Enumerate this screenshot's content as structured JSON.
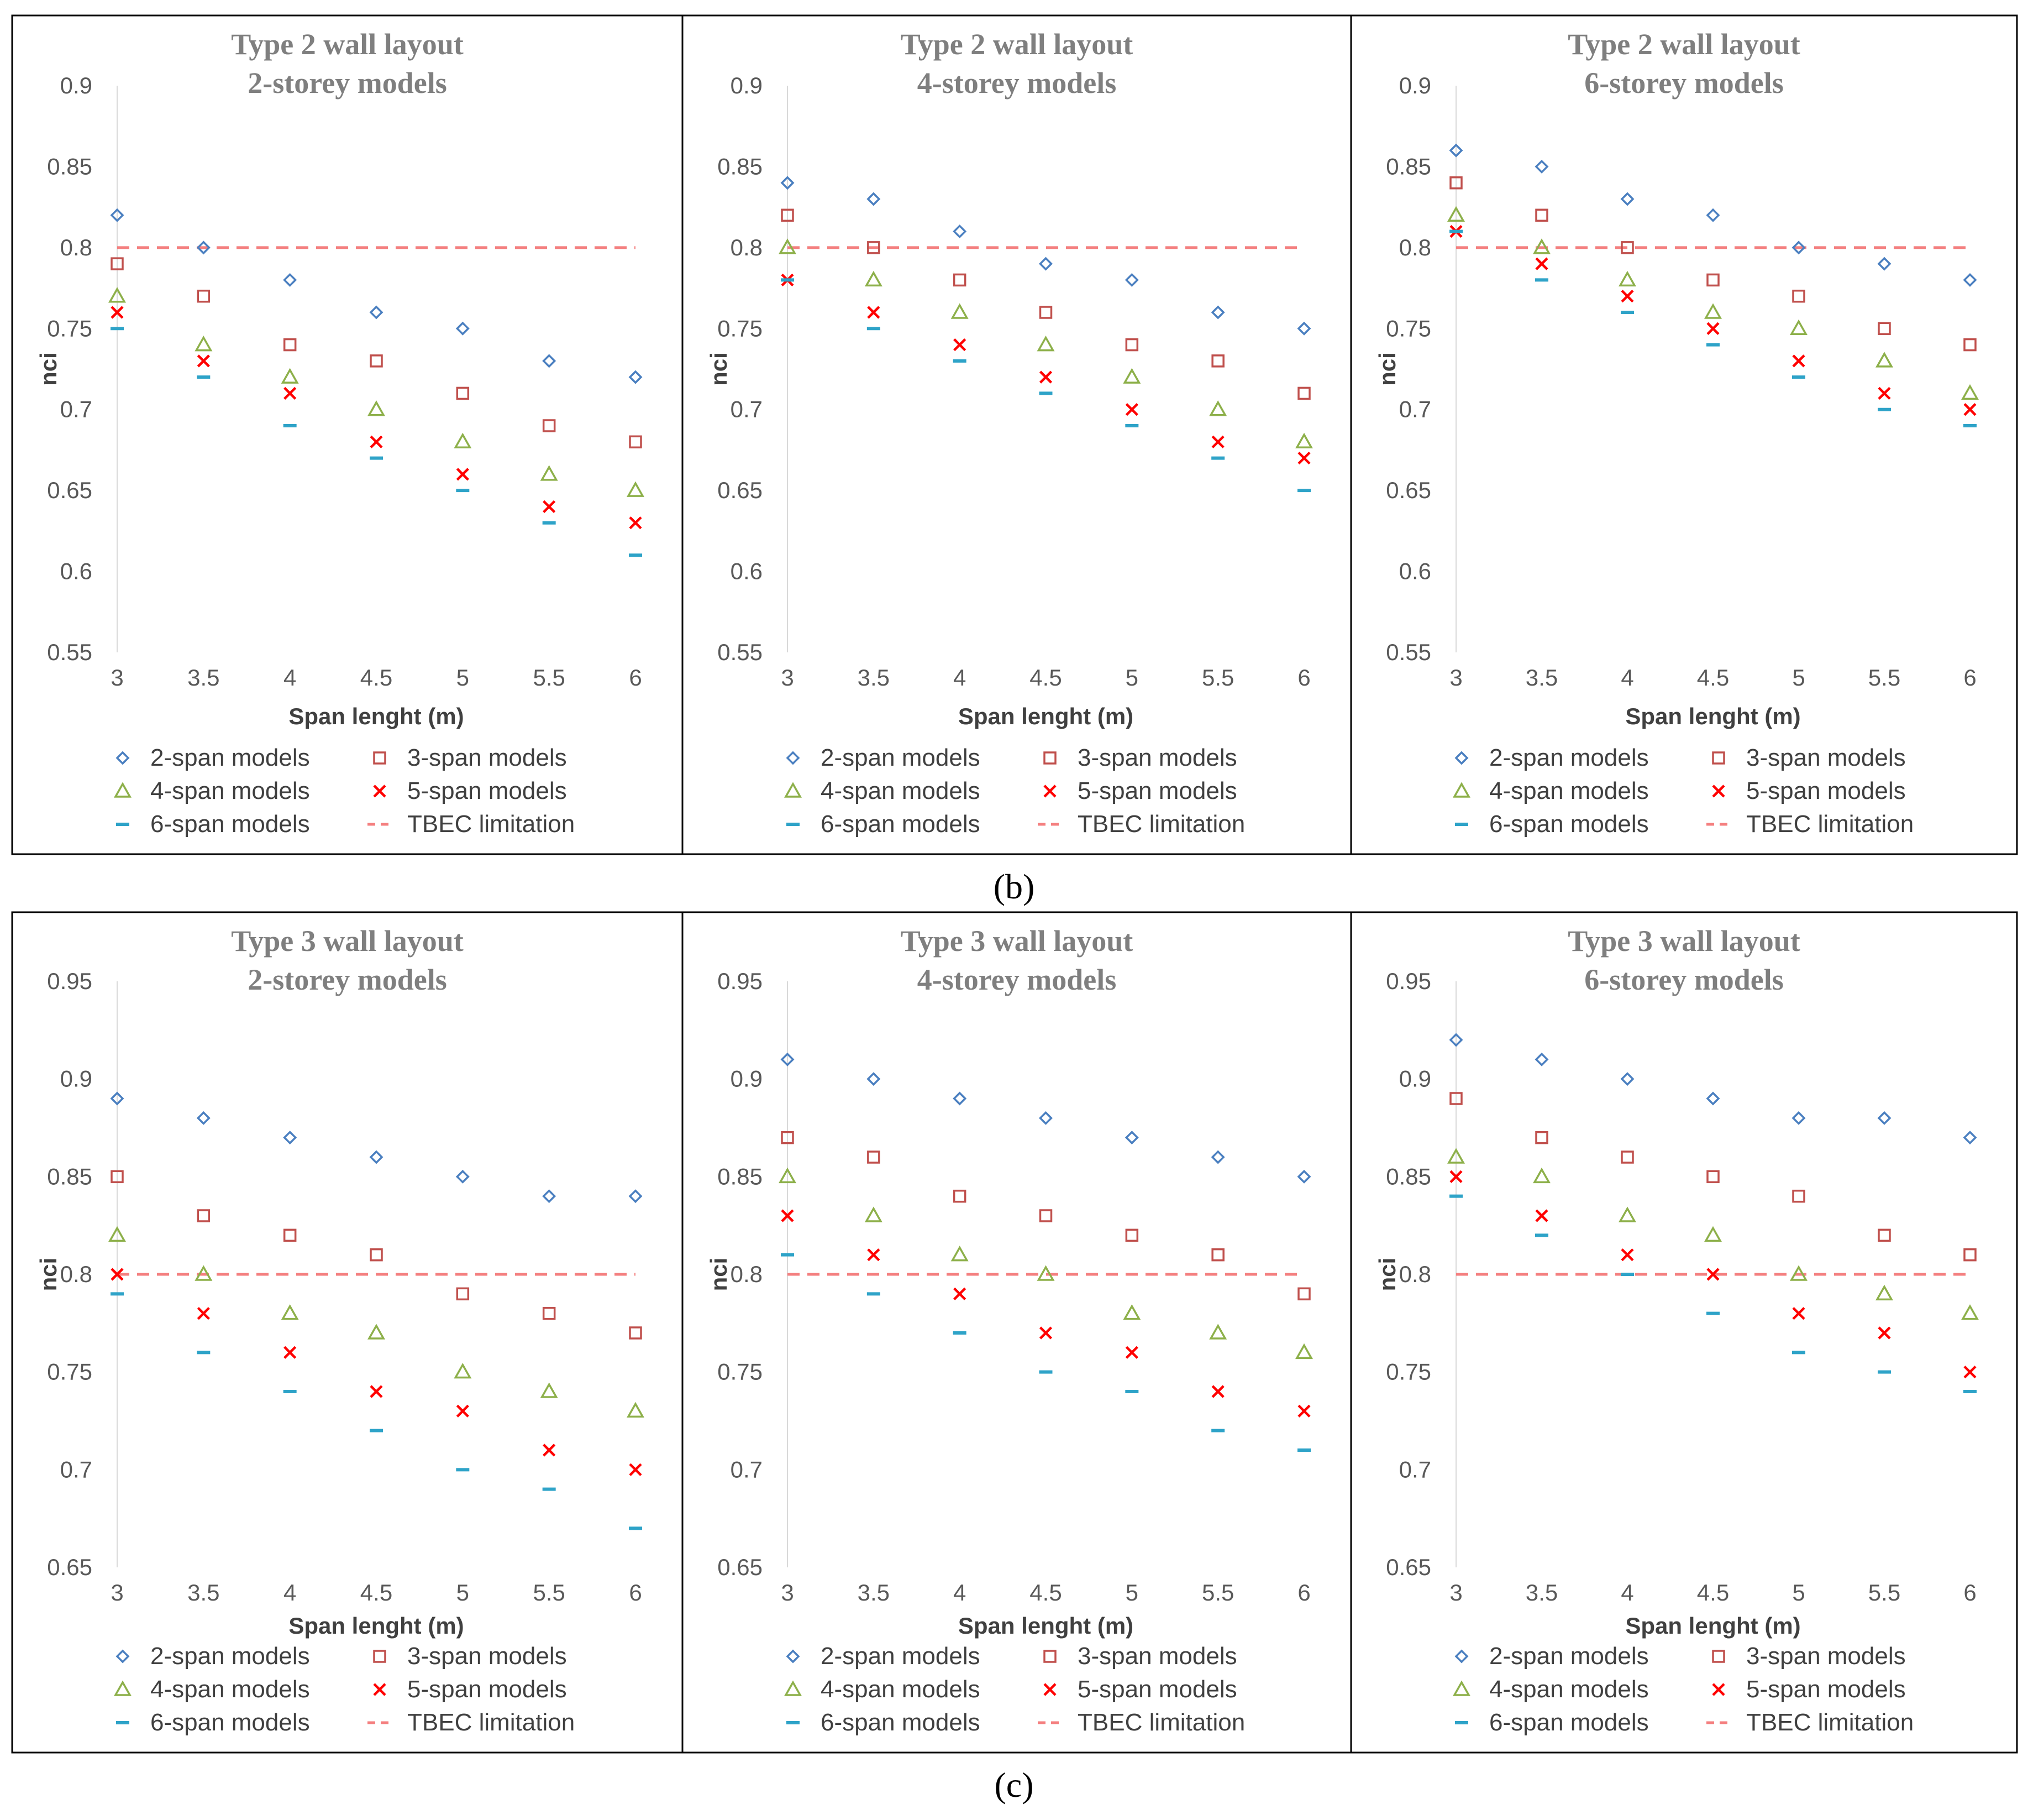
{
  "colors": {
    "2-span": "#4a7fc0",
    "3-span": "#c0504d",
    "4-span": "#8db04a",
    "5-span": "#ff0000",
    "6-span": "#2ea3c8",
    "limit": "#f47f7f"
  },
  "captions": [
    "(b)",
    "(c)"
  ],
  "chart_data": [
    {
      "type": "scatter",
      "title": [
        "Type 2 wall layout",
        "2-storey models"
      ],
      "xlabel": "Span lenght (m)",
      "ylabel": "nci",
      "x": [
        3,
        3.5,
        4,
        4.5,
        5,
        5.5,
        6
      ],
      "xticks": [
        "3",
        "3.5",
        "4",
        "4.5",
        "5",
        "5.5",
        "6"
      ],
      "ylim": [
        0.55,
        0.9
      ],
      "yticks": [
        "0.55",
        "0.6",
        "0.65",
        "0.7",
        "0.75",
        "0.8",
        "0.85",
        "0.9"
      ],
      "series": [
        {
          "name": "2-span models",
          "values": [
            0.82,
            0.8,
            0.78,
            0.76,
            0.75,
            0.73,
            0.72
          ]
        },
        {
          "name": "3-span models",
          "values": [
            0.79,
            0.77,
            0.74,
            0.73,
            0.71,
            0.69,
            0.68
          ]
        },
        {
          "name": "4-span models",
          "values": [
            0.77,
            0.74,
            0.72,
            0.7,
            0.68,
            0.66,
            0.65
          ]
        },
        {
          "name": "5-span models",
          "values": [
            0.76,
            0.73,
            0.71,
            0.68,
            0.66,
            0.64,
            0.63
          ]
        },
        {
          "name": "6-span models",
          "values": [
            0.75,
            0.72,
            0.69,
            0.67,
            0.65,
            0.63,
            0.61
          ]
        }
      ],
      "limit": {
        "name": "TBEC limitation",
        "value": 0.8
      }
    },
    {
      "type": "scatter",
      "title": [
        "Type 2 wall layout",
        "4-storey models"
      ],
      "xlabel": "Span lenght (m)",
      "ylabel": "nci",
      "x": [
        3,
        3.5,
        4,
        4.5,
        5,
        5.5,
        6
      ],
      "xticks": [
        "3",
        "3.5",
        "4",
        "4.5",
        "5",
        "5.5",
        "6"
      ],
      "ylim": [
        0.55,
        0.9
      ],
      "yticks": [
        "0.55",
        "0.6",
        "0.65",
        "0.7",
        "0.75",
        "0.8",
        "0.85",
        "0.9"
      ],
      "series": [
        {
          "name": "2-span models",
          "values": [
            0.84,
            0.83,
            0.81,
            0.79,
            0.78,
            0.76,
            0.75
          ]
        },
        {
          "name": "3-span models",
          "values": [
            0.82,
            0.8,
            0.78,
            0.76,
            0.74,
            0.73,
            0.71
          ]
        },
        {
          "name": "4-span models",
          "values": [
            0.8,
            0.78,
            0.76,
            0.74,
            0.72,
            0.7,
            0.68
          ]
        },
        {
          "name": "5-span models",
          "values": [
            0.78,
            0.76,
            0.74,
            0.72,
            0.7,
            0.68,
            0.67
          ]
        },
        {
          "name": "6-span models",
          "values": [
            0.78,
            0.75,
            0.73,
            0.71,
            0.69,
            0.67,
            0.65
          ]
        }
      ],
      "limit": {
        "name": "TBEC limitation",
        "value": 0.8
      }
    },
    {
      "type": "scatter",
      "title": [
        "Type 2 wall layout",
        "6-storey models"
      ],
      "xlabel": "Span lenght (m)",
      "ylabel": "nci",
      "x": [
        3,
        3.5,
        4,
        4.5,
        5,
        5.5,
        6
      ],
      "xticks": [
        "3",
        "3.5",
        "4",
        "4.5",
        "5",
        "5.5",
        "6"
      ],
      "ylim": [
        0.55,
        0.9
      ],
      "yticks": [
        "0.55",
        "0.6",
        "0.65",
        "0.7",
        "0.75",
        "0.8",
        "0.85",
        "0.9"
      ],
      "series": [
        {
          "name": "2-span models",
          "values": [
            0.86,
            0.85,
            0.83,
            0.82,
            0.8,
            0.79,
            0.78
          ]
        },
        {
          "name": "3-span models",
          "values": [
            0.84,
            0.82,
            0.8,
            0.78,
            0.77,
            0.75,
            0.74
          ]
        },
        {
          "name": "4-span models",
          "values": [
            0.82,
            0.8,
            0.78,
            0.76,
            0.75,
            0.73,
            0.71
          ]
        },
        {
          "name": "5-span models",
          "values": [
            0.81,
            0.79,
            0.77,
            0.75,
            0.73,
            0.71,
            0.7
          ]
        },
        {
          "name": "6-span models",
          "values": [
            0.81,
            0.78,
            0.76,
            0.74,
            0.72,
            0.7,
            0.69
          ]
        }
      ],
      "limit": {
        "name": "TBEC limitation",
        "value": 0.8
      }
    },
    {
      "type": "scatter",
      "title": [
        "Type 3 wall layout",
        "2-storey models"
      ],
      "xlabel": "Span lenght (m)",
      "ylabel": "nci",
      "x": [
        3,
        3.5,
        4,
        4.5,
        5,
        5.5,
        6
      ],
      "xticks": [
        "3",
        "3.5",
        "4",
        "4.5",
        "5",
        "5.5",
        "6"
      ],
      "ylim": [
        0.65,
        0.95
      ],
      "yticks": [
        "0.65",
        "0.7",
        "0.75",
        "0.8",
        "0.85",
        "0.9",
        "0.95"
      ],
      "series": [
        {
          "name": "2-span models",
          "values": [
            0.89,
            0.88,
            0.87,
            0.86,
            0.85,
            0.84,
            0.84
          ]
        },
        {
          "name": "3-span models",
          "values": [
            0.85,
            0.83,
            0.82,
            0.81,
            0.79,
            0.78,
            0.77
          ]
        },
        {
          "name": "4-span models",
          "values": [
            0.82,
            0.8,
            0.78,
            0.77,
            0.75,
            0.74,
            0.73
          ]
        },
        {
          "name": "5-span models",
          "values": [
            0.8,
            0.78,
            0.76,
            0.74,
            0.73,
            0.71,
            0.7
          ]
        },
        {
          "name": "6-span models",
          "values": [
            0.79,
            0.76,
            0.74,
            0.72,
            0.7,
            0.69,
            0.67
          ]
        }
      ],
      "limit": {
        "name": "TBEC limitation",
        "value": 0.8
      }
    },
    {
      "type": "scatter",
      "title": [
        "Type 3 wall layout",
        "4-storey models"
      ],
      "xlabel": "Span lenght (m)",
      "ylabel": "nci",
      "x": [
        3,
        3.5,
        4,
        4.5,
        5,
        5.5,
        6
      ],
      "xticks": [
        "3",
        "3.5",
        "4",
        "4.5",
        "5",
        "5.5",
        "6"
      ],
      "ylim": [
        0.65,
        0.95
      ],
      "yticks": [
        "0.65",
        "0.7",
        "0.75",
        "0.8",
        "0.85",
        "0.9",
        "0.95"
      ],
      "series": [
        {
          "name": "2-span models",
          "values": [
            0.91,
            0.9,
            0.89,
            0.88,
            0.87,
            0.86,
            0.85
          ]
        },
        {
          "name": "3-span models",
          "values": [
            0.87,
            0.86,
            0.84,
            0.83,
            0.82,
            0.81,
            0.79
          ]
        },
        {
          "name": "4-span models",
          "values": [
            0.85,
            0.83,
            0.81,
            0.8,
            0.78,
            0.77,
            0.76
          ]
        },
        {
          "name": "5-span models",
          "values": [
            0.83,
            0.81,
            0.79,
            0.77,
            0.76,
            0.74,
            0.73
          ]
        },
        {
          "name": "6-span models",
          "values": [
            0.81,
            0.79,
            0.77,
            0.75,
            0.74,
            0.72,
            0.71
          ]
        }
      ],
      "limit": {
        "name": "TBEC limitation",
        "value": 0.8
      }
    },
    {
      "type": "scatter",
      "title": [
        "Type 3 wall layout",
        "6-storey models"
      ],
      "xlabel": "Span lenght (m)",
      "ylabel": "nci",
      "x": [
        3,
        3.5,
        4,
        4.5,
        5,
        5.5,
        6
      ],
      "xticks": [
        "3",
        "3.5",
        "4",
        "4.5",
        "5",
        "5.5",
        "6"
      ],
      "ylim": [
        0.65,
        0.95
      ],
      "yticks": [
        "0.65",
        "0.7",
        "0.75",
        "0.8",
        "0.85",
        "0.9",
        "0.95"
      ],
      "series": [
        {
          "name": "2-span models",
          "values": [
            0.92,
            0.91,
            0.9,
            0.89,
            0.88,
            0.88,
            0.87
          ]
        },
        {
          "name": "3-span models",
          "values": [
            0.89,
            0.87,
            0.86,
            0.85,
            0.84,
            0.82,
            0.81
          ]
        },
        {
          "name": "4-span models",
          "values": [
            0.86,
            0.85,
            0.83,
            0.82,
            0.8,
            0.79,
            0.78
          ]
        },
        {
          "name": "5-span models",
          "values": [
            0.85,
            0.83,
            0.81,
            0.8,
            0.78,
            0.77,
            0.75
          ]
        },
        {
          "name": "6-span models",
          "values": [
            0.84,
            0.82,
            0.8,
            0.78,
            0.76,
            0.75,
            0.74
          ]
        }
      ],
      "limit": {
        "name": "TBEC limitation",
        "value": 0.8
      }
    }
  ]
}
